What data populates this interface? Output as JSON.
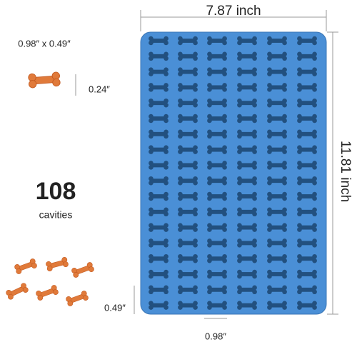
{
  "dimensions": {
    "width": "7.87 inch",
    "height": "11.81 inch"
  },
  "treat": {
    "size": "0.98″ x 0.49″",
    "thickness": "0.24″"
  },
  "count": {
    "number": "108",
    "label": "cavities"
  },
  "cavity": {
    "height": "0.49″",
    "width": "0.98″"
  }
}
